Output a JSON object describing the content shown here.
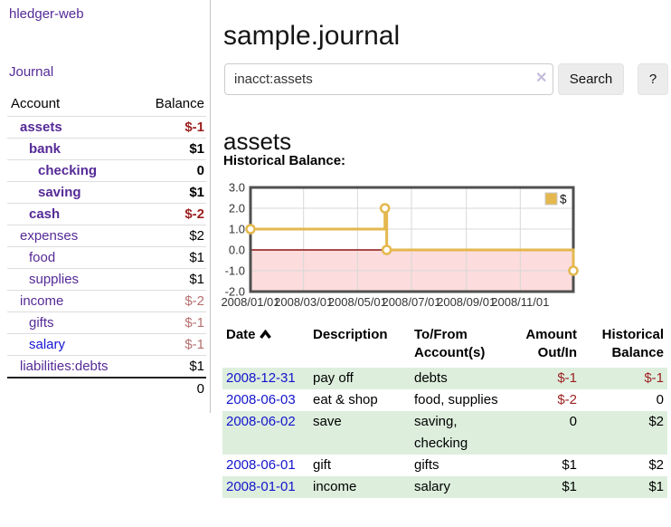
{
  "brand": "hledger-web",
  "nav": {
    "journal_label": "Journal"
  },
  "sidebar": {
    "header": {
      "account": "Account",
      "balance": "Balance"
    },
    "rows": [
      {
        "name": "assets",
        "indent": 1,
        "bold": true,
        "balance": "$-1",
        "balance_style": "neg"
      },
      {
        "name": "bank",
        "indent": 2,
        "bold": true,
        "balance": "$1",
        "balance_style": "pos"
      },
      {
        "name": "checking",
        "indent": 3,
        "bold": true,
        "balance": "0",
        "balance_style": "pos"
      },
      {
        "name": "saving",
        "indent": 3,
        "bold": true,
        "balance": "$1",
        "balance_style": "pos"
      },
      {
        "name": "cash",
        "indent": 2,
        "bold": true,
        "balance": "$-2",
        "balance_style": "neg"
      },
      {
        "name": "expenses",
        "indent": 1,
        "bold": false,
        "balance": "$2",
        "balance_style": "pos"
      },
      {
        "name": "food",
        "indent": 2,
        "bold": false,
        "balance": "$1",
        "balance_style": "pos"
      },
      {
        "name": "supplies",
        "indent": 2,
        "bold": false,
        "balance": "$1",
        "balance_style": "pos"
      },
      {
        "name": "income",
        "indent": 1,
        "bold": false,
        "balance": "$-2",
        "balance_style": "neg-light"
      },
      {
        "name": "gifts",
        "indent": 2,
        "bold": false,
        "balance": "$-1",
        "balance_style": "neg-light"
      },
      {
        "name": "salary",
        "indent": 2,
        "bold": false,
        "balance": "$-1",
        "balance_style": "neg-light",
        "link_style": "unvisited"
      },
      {
        "name": "liabilities:debts",
        "indent": 1,
        "bold": false,
        "balance": "$1",
        "balance_style": "pos"
      }
    ],
    "total": "0"
  },
  "header": {
    "title": "sample.journal"
  },
  "search": {
    "value": "inacct:assets",
    "clear_label": "✕",
    "button_label": "Search",
    "help_label": "?"
  },
  "account_page": {
    "title": "assets",
    "chart_label": "Historical Balance:"
  },
  "chart_data": {
    "type": "line",
    "title": "Historical Balance:",
    "x_range": [
      "2008-01-01",
      "2008-12-31"
    ],
    "ylim": [
      -2.0,
      3.0
    ],
    "y_ticks": [
      "3.0",
      "2.0",
      "1.0",
      "0.0",
      "-1.0",
      "-2.0"
    ],
    "x_ticks": [
      "2008/01/01",
      "2008/03/01",
      "2008/05/01",
      "2008/07/01",
      "2008/09/01",
      "2008/11/01"
    ],
    "grid": true,
    "legend": {
      "position": "top-right",
      "label": "$"
    },
    "series": [
      {
        "name": "$",
        "color": "#e4b84e",
        "marker": "open-circle",
        "step": true,
        "points": [
          [
            "2008-01-01",
            1
          ],
          [
            "2008-06-01",
            2
          ],
          [
            "2008-06-03",
            0
          ],
          [
            "2008-12-31",
            -1
          ]
        ]
      }
    ],
    "negative_region_fill": "#fcdcdc",
    "zero_line_color": "#8b1512"
  },
  "register": {
    "header": {
      "date": "Date",
      "description": "Description",
      "tofrom": "To/From Account(s)",
      "amount": "Amount Out/In",
      "balance": "Historical Balance"
    },
    "rows": [
      {
        "date": "2008-12-31",
        "description": "pay off",
        "accounts": "debts",
        "amount": "$-1",
        "amount_neg": true,
        "balance": "$-1",
        "balance_neg": true
      },
      {
        "date": "2008-06-03",
        "description": "eat & shop",
        "accounts": "food, supplies",
        "amount": "$-2",
        "amount_neg": true,
        "balance": "0",
        "balance_neg": false
      },
      {
        "date": "2008-06-02",
        "description": "save",
        "accounts": "saving, checking",
        "amount": "0",
        "amount_neg": false,
        "balance": "$2",
        "balance_neg": false
      },
      {
        "date": "2008-06-01",
        "description": "gift",
        "accounts": "gifts",
        "amount": "$1",
        "amount_neg": false,
        "balance": "$2",
        "balance_neg": false
      },
      {
        "date": "2008-01-01",
        "description": "income",
        "accounts": "salary",
        "amount": "$1",
        "amount_neg": false,
        "balance": "$1",
        "balance_neg": false
      }
    ]
  },
  "colors": {
    "link_purple": "#552a97",
    "link_blue": "#1414cc",
    "negative_dark_red": "#9c1f1f",
    "negative_light_red": "#b57070",
    "row_green": "#ddeedd",
    "chart_gold": "#e4b84e",
    "chart_negative_pink": "#fcdcdc"
  }
}
